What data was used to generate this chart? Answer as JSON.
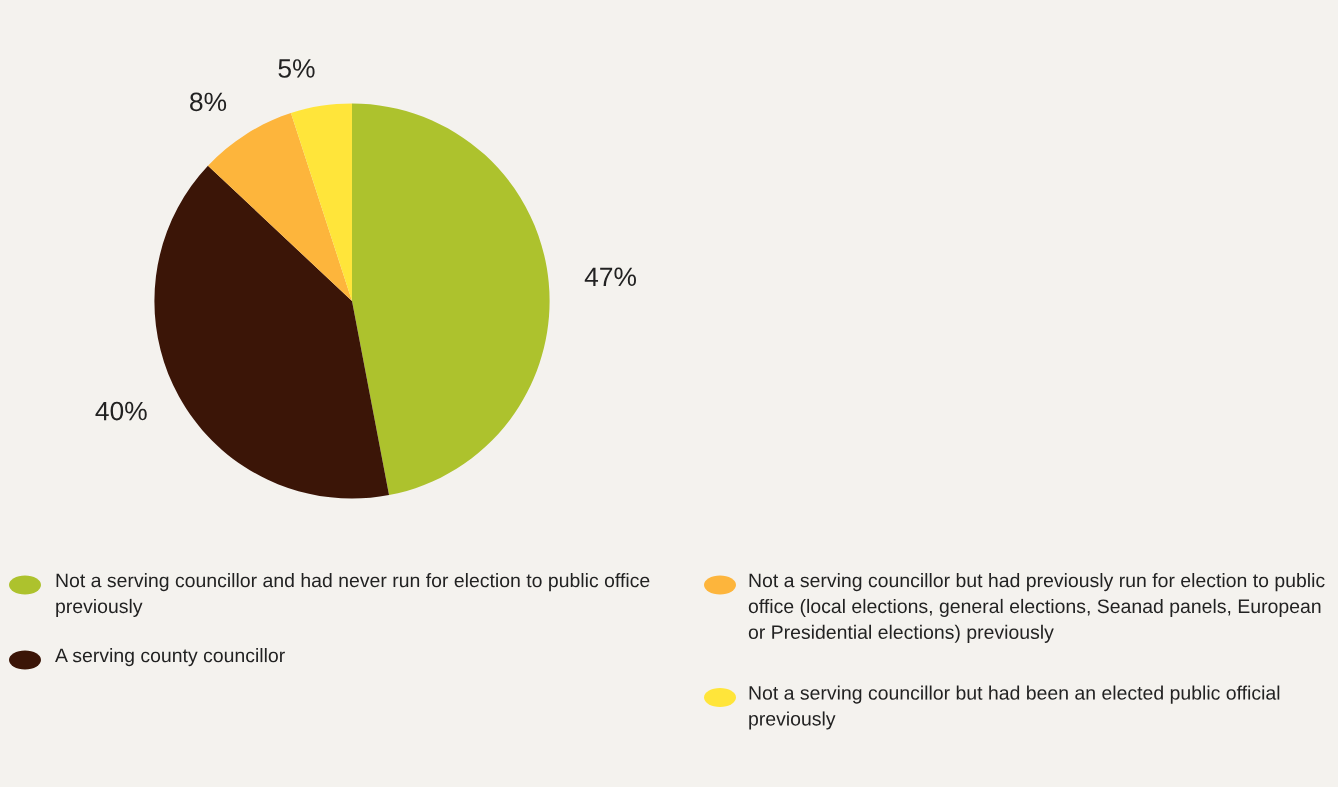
{
  "chart_data": {
    "type": "pie",
    "categories": [
      "Not a serving councillor and had never run for election to public office previously",
      "A serving county councillor",
      "Not a serving councillor but had previously run for election to public office (local elections, general elections, Seanad panels, European or Presidential elections) previously",
      "Not a serving councillor but had been an elected public official previously"
    ],
    "values": [
      47,
      40,
      8,
      5
    ],
    "colors": [
      "#adc22d",
      "#3b1507",
      "#fdb53c",
      "#ffe53a"
    ],
    "value_labels": [
      "47%",
      "40%",
      "8%",
      "5%"
    ],
    "legend": "bottom"
  }
}
